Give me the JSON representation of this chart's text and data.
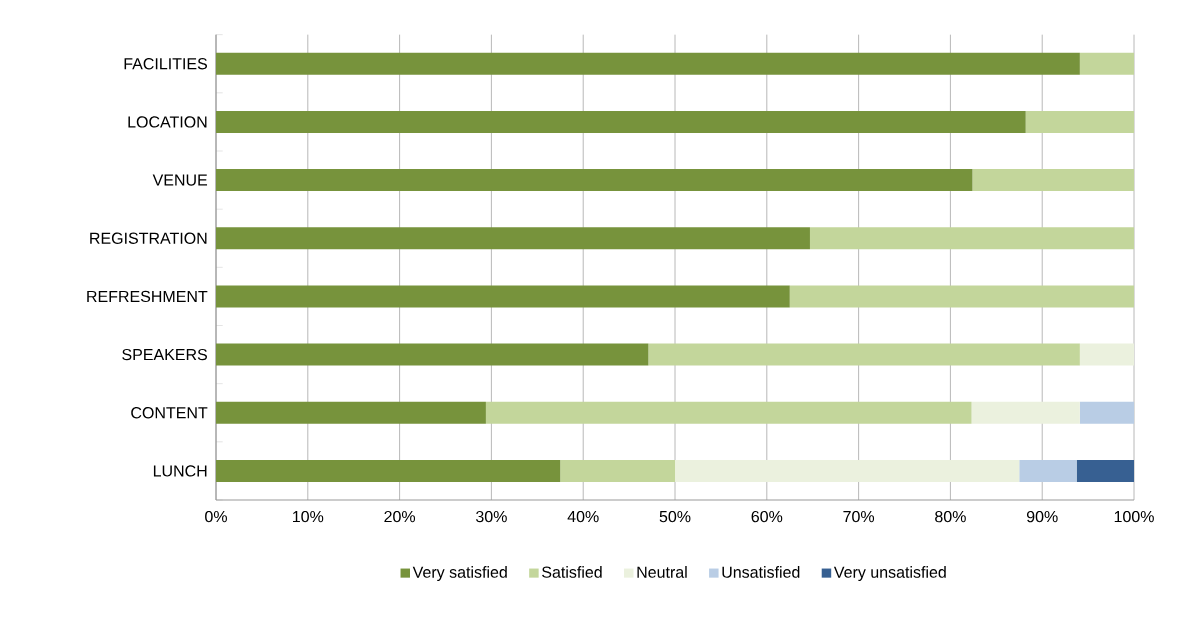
{
  "chart_data": {
    "type": "bar",
    "orientation": "horizontal",
    "stacked": true,
    "grid": "x",
    "legend": "bottom",
    "categories": [
      "FACILITIES",
      "LOCATION",
      "VENUE",
      "REGISTRATION",
      "REFRESHMENT",
      "SPEAKERS",
      "CONTENT",
      "LUNCH"
    ],
    "xlim": [
      0,
      100
    ],
    "xticks": [
      {
        "value": 0,
        "label": "0%"
      },
      {
        "value": 10,
        "label": "10%"
      },
      {
        "value": 20,
        "label": "20%"
      },
      {
        "value": 30,
        "label": "30%"
      },
      {
        "value": 40,
        "label": "40%"
      },
      {
        "value": 50,
        "label": "50%"
      },
      {
        "value": 60,
        "label": "60%"
      },
      {
        "value": 70,
        "label": "70%"
      },
      {
        "value": 80,
        "label": "80%"
      },
      {
        "value": 90,
        "label": "90%"
      },
      {
        "value": 100,
        "label": "100%"
      }
    ],
    "series": [
      {
        "name": "Very satisfied",
        "color": "#77933c",
        "values": [
          94.1,
          88.2,
          82.4,
          64.7,
          62.5,
          47.1,
          29.4,
          37.5
        ]
      },
      {
        "name": "Satisfied",
        "color": "#c3d69b",
        "values": [
          5.9,
          11.8,
          17.6,
          35.3,
          37.5,
          47.0,
          52.9,
          12.5
        ]
      },
      {
        "name": "Neutral",
        "color": "#ebf1de",
        "values": [
          0,
          0,
          0,
          0,
          0,
          5.9,
          11.8,
          37.5
        ]
      },
      {
        "name": "Unsatisfied",
        "color": "#b9cde5",
        "values": [
          0,
          0,
          0,
          0,
          0,
          0,
          5.9,
          6.25
        ]
      },
      {
        "name": "Very unsatisfied",
        "color": "#376092",
        "values": [
          0,
          0,
          0,
          0,
          0,
          0,
          0,
          6.25
        ]
      }
    ]
  }
}
